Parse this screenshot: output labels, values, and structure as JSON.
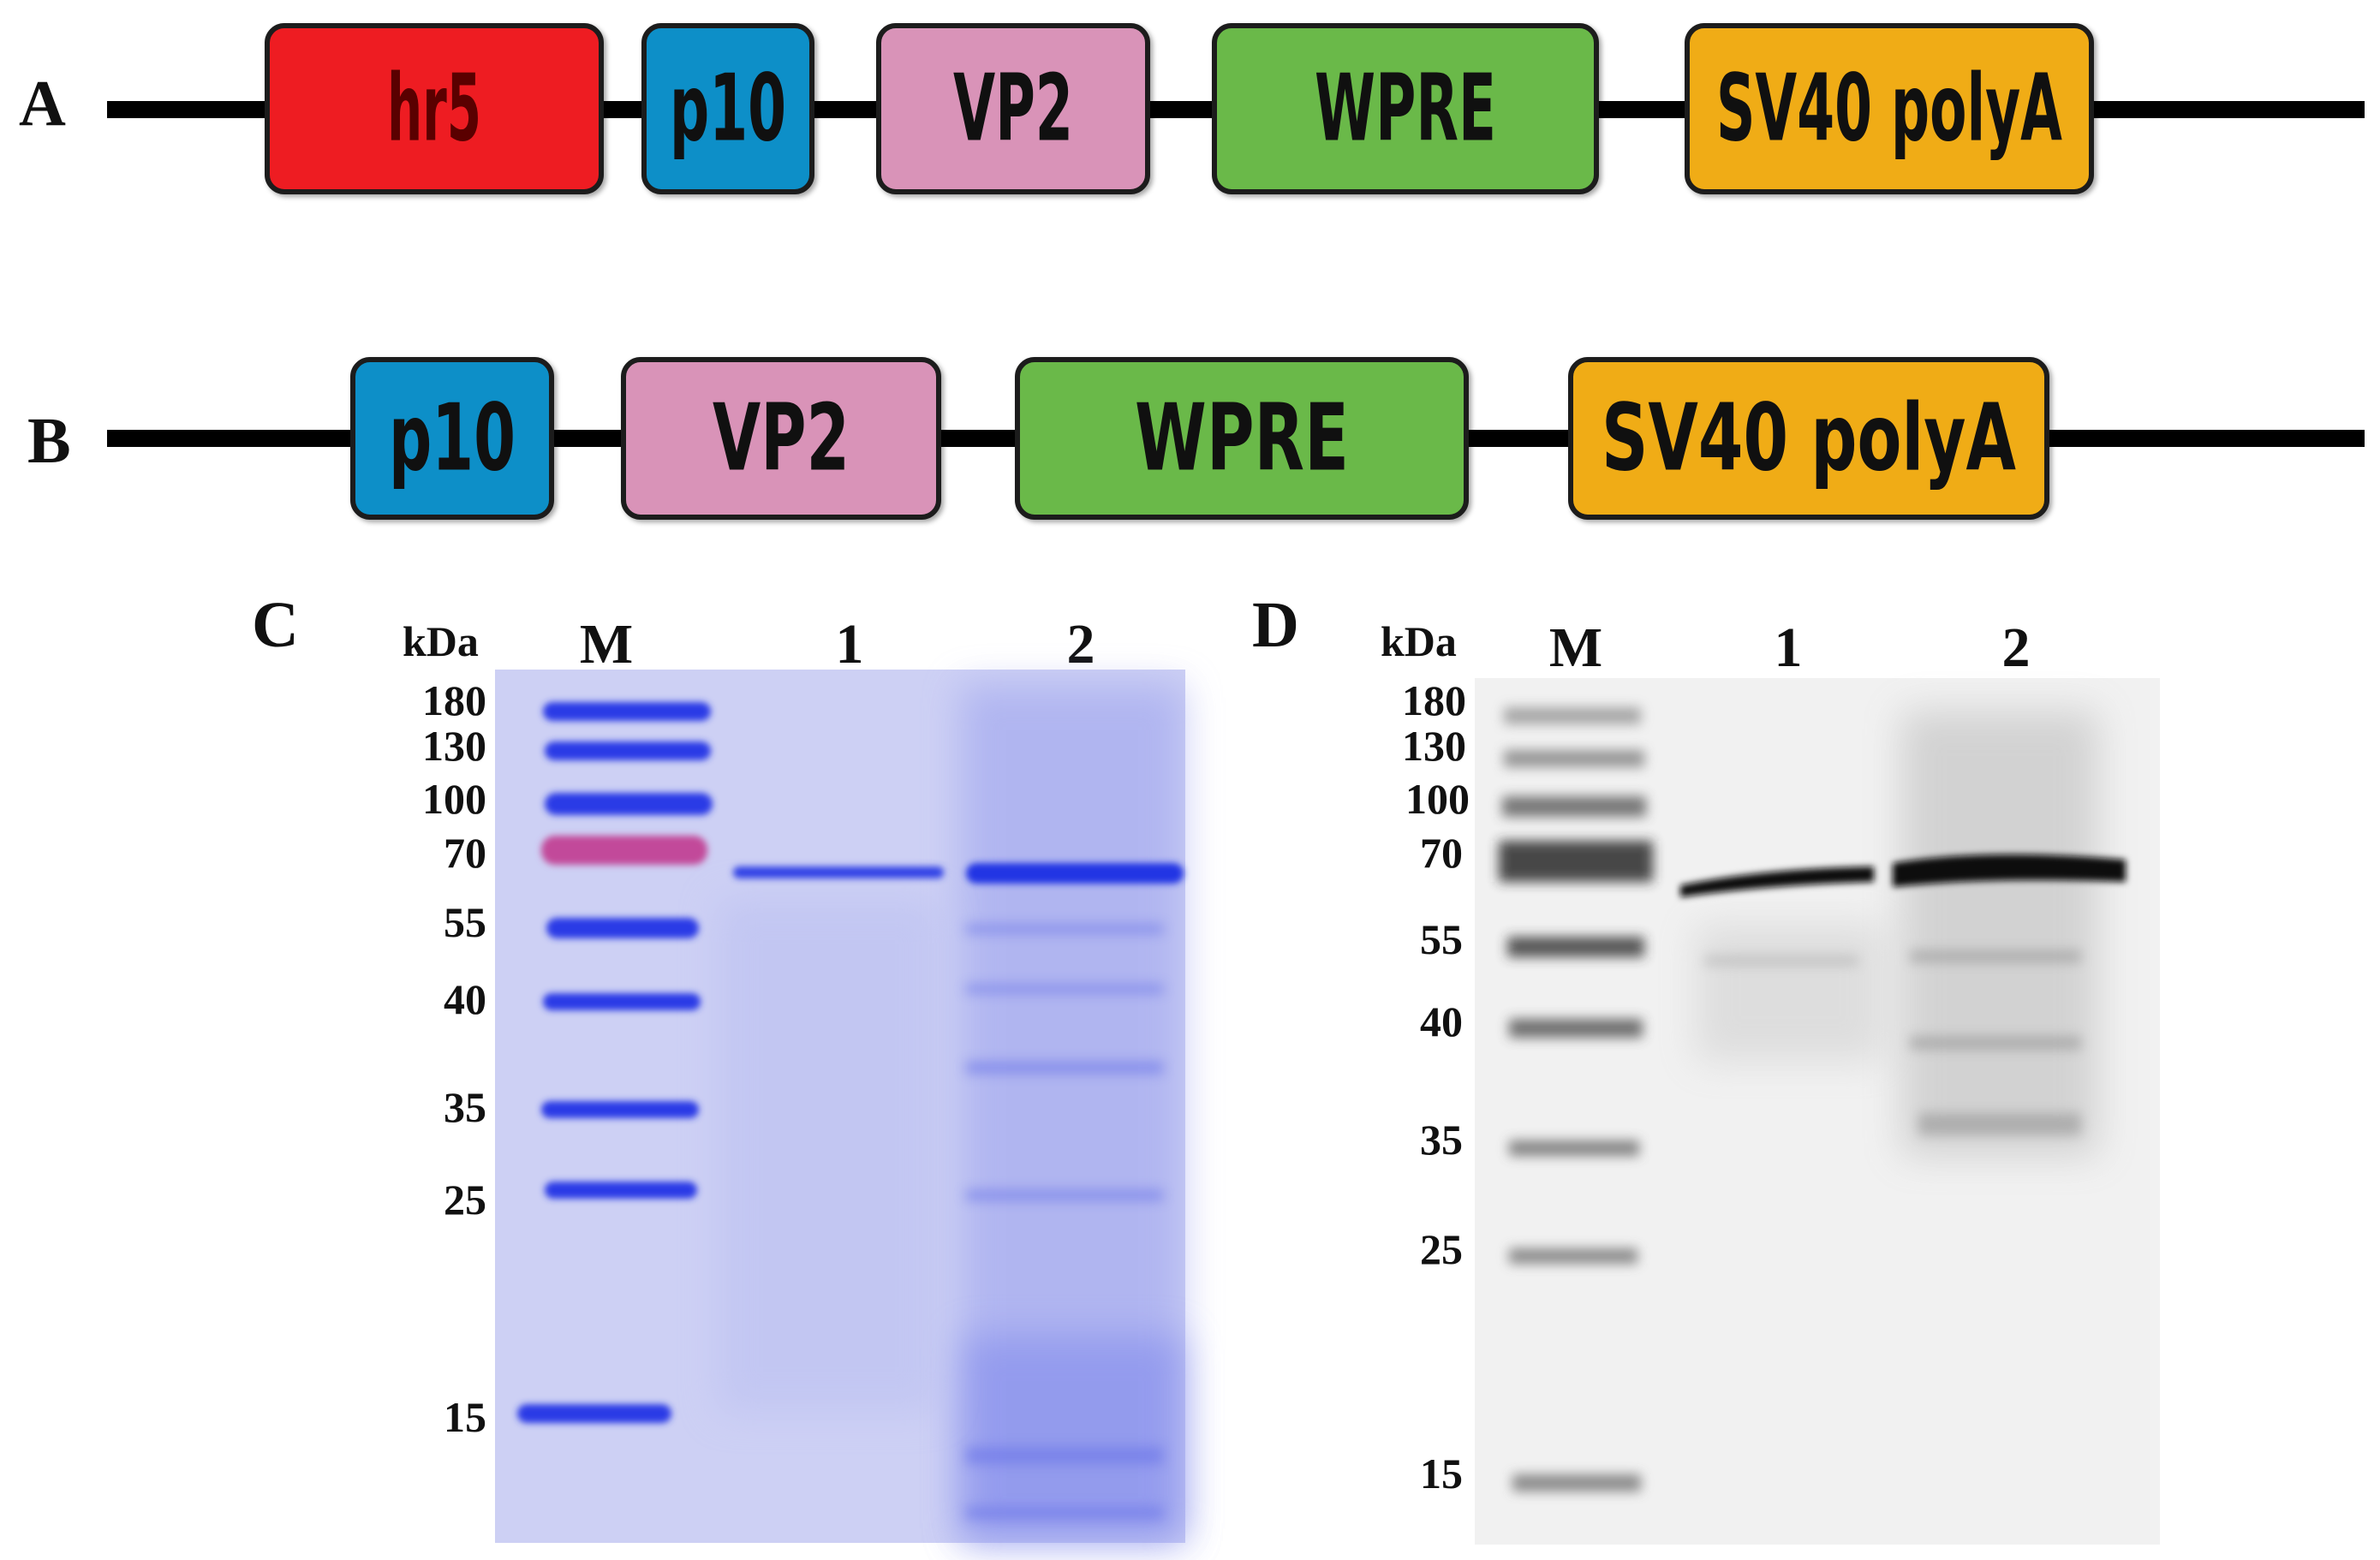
{
  "panels": {
    "A": {
      "letter": "A",
      "elements": [
        {
          "label": "hr5",
          "color": "#ee1c24",
          "text_color": "#5a0000"
        },
        {
          "label": "p10",
          "color": "#0c8fc8",
          "text_color": "#101010"
        },
        {
          "label": "VP2",
          "color": "#d993b8",
          "text_color": "#101010"
        },
        {
          "label": "WPRE",
          "color": "#6ab94a",
          "text_color": "#101010"
        },
        {
          "label": "SV40 polyA",
          "color": "#f0ac14",
          "text_color": "#101010"
        }
      ]
    },
    "B": {
      "letter": "B",
      "elements": [
        {
          "label": "p10",
          "color": "#0c8fc8",
          "text_color": "#101010"
        },
        {
          "label": "VP2",
          "color": "#d993b8",
          "text_color": "#101010"
        },
        {
          "label": "WPRE",
          "color": "#6ab94a",
          "text_color": "#101010"
        },
        {
          "label": "SV40 polyA",
          "color": "#f0ac14",
          "text_color": "#101010"
        }
      ]
    },
    "C": {
      "letter": "C",
      "unit": "kDa",
      "lanes": [
        "M",
        "1",
        "2"
      ],
      "markers": [
        "180",
        "130",
        "100",
        "70",
        "55",
        "40",
        "35",
        "25",
        "15"
      ],
      "stain": "Coomassie SDS-PAGE",
      "background_color": "#cdd0f4",
      "band_color": "#2f3fe8"
    },
    "D": {
      "letter": "D",
      "unit": "kDa",
      "lanes": [
        "M",
        "1",
        "2"
      ],
      "markers": [
        "180",
        "130",
        "100",
        "70",
        "55",
        "40",
        "35",
        "25",
        "15"
      ],
      "stain": "Western blot",
      "background_color": "#f1f1f1",
      "band_color": "#111111"
    }
  }
}
